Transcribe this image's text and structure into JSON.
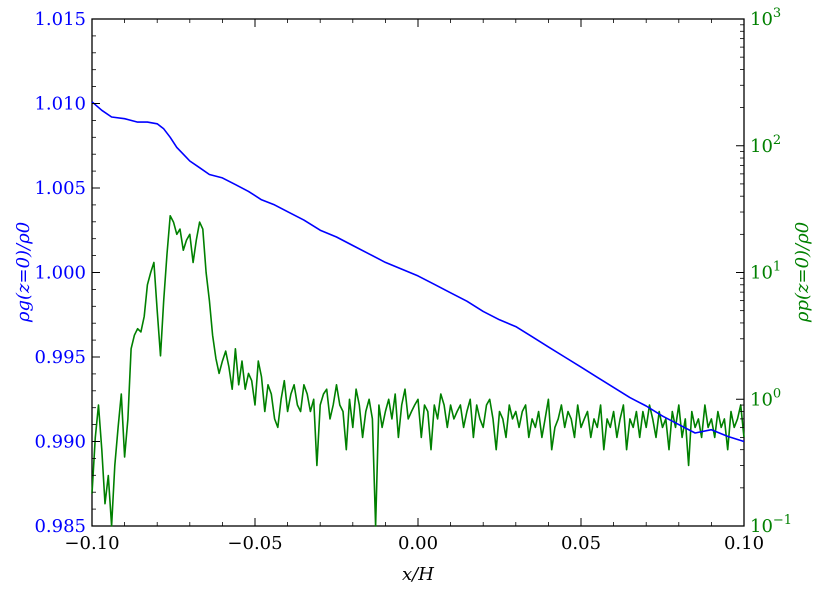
{
  "chart_data": {
    "type": "line",
    "title": "",
    "xlabel": "x/H",
    "ylabel_left": "ρg(z=0)/ρ0",
    "ylabel_right": "ρp(z=0)/ρ0",
    "xlim": [
      -0.1,
      0.1
    ],
    "ylim_left": [
      0.985,
      1.015
    ],
    "ylim_right": [
      0.1,
      1000
    ],
    "yscale_right": "log",
    "grid": false,
    "legend": "none",
    "x_ticks": [
      "−0.10",
      "−0.05",
      "0.00",
      "0.05",
      "0.10"
    ],
    "y_left_ticks": [
      "0.985",
      "0.990",
      "0.995",
      "1.000",
      "1.005",
      "1.010",
      "1.015"
    ],
    "y_right_ticks": [
      {
        "base": "10",
        "exp": "−1"
      },
      {
        "base": "10",
        "exp": "0"
      },
      {
        "base": "10",
        "exp": "1"
      },
      {
        "base": "10",
        "exp": "2"
      },
      {
        "base": "10",
        "exp": "3"
      }
    ],
    "colors": {
      "gas": "#0000ff",
      "particles": "#008000",
      "frame": "#000000"
    },
    "series": [
      {
        "axis": "left",
        "color": "#0000ff",
        "x": [
          -0.1,
          -0.097,
          -0.094,
          -0.09,
          -0.086,
          -0.083,
          -0.08,
          -0.078,
          -0.076,
          -0.074,
          -0.072,
          -0.07,
          -0.067,
          -0.064,
          -0.06,
          -0.056,
          -0.052,
          -0.048,
          -0.044,
          -0.04,
          -0.035,
          -0.03,
          -0.025,
          -0.02,
          -0.015,
          -0.01,
          -0.005,
          0.0,
          0.005,
          0.01,
          0.015,
          0.02,
          0.025,
          0.03,
          0.035,
          0.04,
          0.045,
          0.05,
          0.055,
          0.06,
          0.065,
          0.07,
          0.075,
          0.08,
          0.085,
          0.09,
          0.095,
          0.1
        ],
        "y": [
          1.0101,
          1.0096,
          1.0092,
          1.0091,
          1.0089,
          1.0089,
          1.0088,
          1.0085,
          1.008,
          1.0074,
          1.007,
          1.0066,
          1.0062,
          1.0058,
          1.0056,
          1.0052,
          1.0048,
          1.0043,
          1.004,
          1.0036,
          1.0031,
          1.0025,
          1.0021,
          1.0016,
          1.0011,
          1.0006,
          1.0002,
          0.9998,
          0.9993,
          0.9988,
          0.9983,
          0.9977,
          0.9972,
          0.9968,
          0.9962,
          0.9956,
          0.995,
          0.9944,
          0.9938,
          0.9932,
          0.9926,
          0.9921,
          0.9915,
          0.991,
          0.9905,
          0.9907,
          0.9903,
          0.99
        ]
      },
      {
        "axis": "right",
        "color": "#008000",
        "x": [
          -0.1,
          -0.099,
          -0.098,
          -0.097,
          -0.096,
          -0.095,
          -0.094,
          -0.093,
          -0.092,
          -0.091,
          -0.09,
          -0.089,
          -0.088,
          -0.087,
          -0.086,
          -0.085,
          -0.084,
          -0.083,
          -0.082,
          -0.081,
          -0.08,
          -0.079,
          -0.078,
          -0.077,
          -0.076,
          -0.075,
          -0.074,
          -0.073,
          -0.072,
          -0.071,
          -0.07,
          -0.069,
          -0.068,
          -0.067,
          -0.066,
          -0.065,
          -0.064,
          -0.063,
          -0.062,
          -0.061,
          -0.06,
          -0.059,
          -0.058,
          -0.057,
          -0.056,
          -0.055,
          -0.054,
          -0.053,
          -0.052,
          -0.051,
          -0.05,
          -0.049,
          -0.048,
          -0.047,
          -0.046,
          -0.045,
          -0.044,
          -0.043,
          -0.042,
          -0.041,
          -0.04,
          -0.039,
          -0.038,
          -0.037,
          -0.036,
          -0.035,
          -0.034,
          -0.033,
          -0.032,
          -0.031,
          -0.03,
          -0.029,
          -0.028,
          -0.027,
          -0.026,
          -0.025,
          -0.024,
          -0.023,
          -0.022,
          -0.021,
          -0.02,
          -0.019,
          -0.018,
          -0.017,
          -0.016,
          -0.015,
          -0.014,
          -0.013,
          -0.012,
          -0.011,
          -0.01,
          -0.009,
          -0.008,
          -0.007,
          -0.006,
          -0.005,
          -0.004,
          -0.003,
          -0.002,
          -0.001,
          0.0,
          0.001,
          0.002,
          0.003,
          0.004,
          0.005,
          0.006,
          0.007,
          0.008,
          0.009,
          0.01,
          0.011,
          0.012,
          0.013,
          0.014,
          0.015,
          0.016,
          0.017,
          0.018,
          0.019,
          0.02,
          0.021,
          0.022,
          0.023,
          0.024,
          0.025,
          0.026,
          0.027,
          0.028,
          0.029,
          0.03,
          0.031,
          0.032,
          0.033,
          0.034,
          0.035,
          0.036,
          0.037,
          0.038,
          0.039,
          0.04,
          0.041,
          0.042,
          0.043,
          0.044,
          0.045,
          0.046,
          0.047,
          0.048,
          0.049,
          0.05,
          0.051,
          0.052,
          0.053,
          0.054,
          0.055,
          0.056,
          0.057,
          0.058,
          0.059,
          0.06,
          0.061,
          0.062,
          0.063,
          0.064,
          0.065,
          0.066,
          0.067,
          0.068,
          0.069,
          0.07,
          0.071,
          0.072,
          0.073,
          0.074,
          0.075,
          0.076,
          0.077,
          0.078,
          0.079,
          0.08,
          0.081,
          0.082,
          0.083,
          0.084,
          0.085,
          0.086,
          0.087,
          0.088,
          0.089,
          0.09,
          0.091,
          0.092,
          0.093,
          0.094,
          0.095,
          0.096,
          0.097,
          0.098,
          0.099,
          0.1
        ],
        "y": [
          0.18,
          0.5,
          0.9,
          0.4,
          0.15,
          0.25,
          0.1,
          0.3,
          0.6,
          1.1,
          0.35,
          0.7,
          2.5,
          3.2,
          3.6,
          3.4,
          4.5,
          8,
          10,
          12,
          5,
          2.2,
          6,
          14,
          28,
          25,
          20,
          22,
          15,
          18,
          20,
          12,
          18,
          25,
          22,
          10,
          6,
          3.2,
          2.1,
          1.6,
          2.0,
          2.4,
          1.8,
          1.2,
          2.5,
          1.3,
          2.0,
          1.2,
          1.6,
          1.4,
          0.9,
          2.0,
          1.5,
          0.8,
          1.3,
          1.1,
          0.7,
          0.6,
          1.0,
          1.4,
          0.8,
          1.1,
          1.3,
          0.9,
          0.8,
          1.3,
          1.1,
          0.8,
          1.0,
          0.3,
          0.9,
          1.1,
          1.2,
          0.7,
          0.9,
          1.3,
          0.9,
          0.8,
          0.4,
          1.0,
          0.6,
          1.2,
          0.9,
          0.5,
          0.8,
          1.0,
          0.7,
          0.1,
          0.9,
          0.6,
          0.8,
          1.0,
          0.7,
          1.1,
          0.5,
          0.9,
          1.2,
          0.7,
          0.8,
          0.9,
          1.0,
          0.5,
          0.9,
          0.8,
          0.4,
          0.9,
          0.7,
          1.1,
          0.9,
          0.6,
          0.9,
          0.7,
          0.8,
          0.9,
          0.6,
          0.8,
          1.0,
          0.5,
          0.9,
          0.7,
          0.6,
          0.9,
          1.0,
          0.7,
          0.4,
          0.8,
          0.7,
          0.5,
          0.9,
          0.7,
          0.8,
          0.6,
          0.8,
          0.9,
          0.5,
          0.7,
          0.6,
          0.8,
          0.5,
          0.7,
          1.0,
          0.4,
          0.6,
          0.7,
          0.9,
          0.6,
          0.8,
          0.7,
          0.5,
          0.9,
          0.6,
          0.7,
          0.8,
          0.5,
          0.7,
          0.6,
          0.9,
          0.4,
          0.7,
          0.6,
          0.8,
          0.5,
          0.7,
          0.9,
          0.4,
          0.7,
          0.6,
          0.8,
          0.5,
          0.8,
          0.6,
          0.9,
          0.7,
          0.5,
          0.8,
          0.6,
          0.7,
          0.4,
          0.8,
          0.6,
          0.9,
          0.5,
          0.7,
          0.3,
          0.8,
          0.6,
          0.7,
          0.5,
          0.9,
          0.6,
          0.7,
          0.5,
          0.8,
          0.6,
          0.7,
          0.4,
          0.8,
          0.6,
          0.7,
          0.9,
          0.5
        ]
      }
    ]
  }
}
